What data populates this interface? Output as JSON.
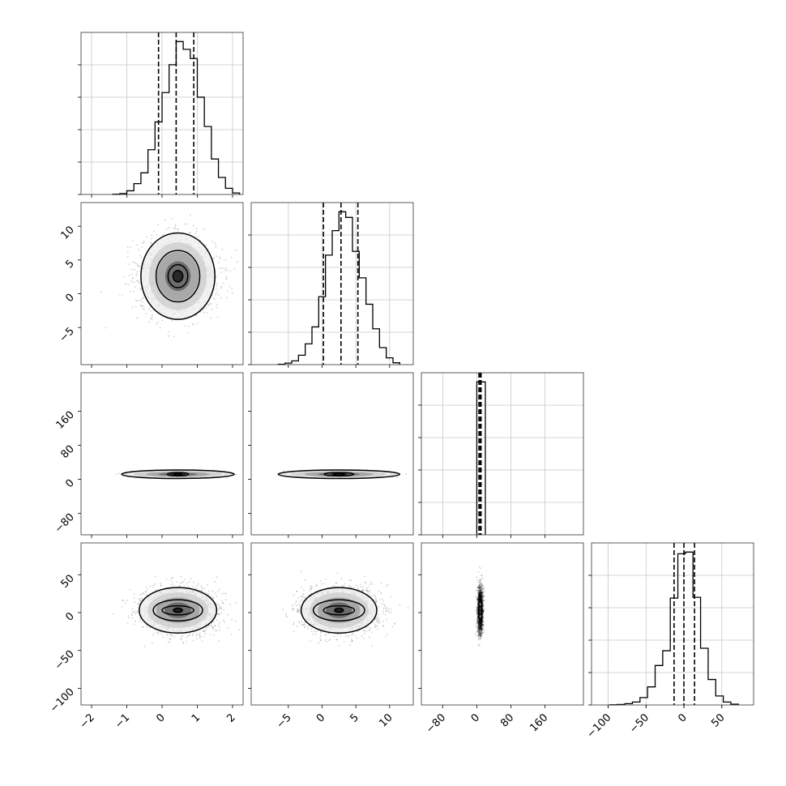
{
  "chart_data": {
    "type": "corner",
    "n_params": 4,
    "params": [
      {
        "range": [
          -2.3,
          2.3
        ],
        "ticks": [
          -2,
          -1,
          0,
          1,
          2
        ],
        "tick_labels": [
          "−2",
          "−1",
          "0",
          "1",
          "2"
        ],
        "median": 0.4,
        "q_low": -0.1,
        "q_high": 0.9,
        "sigma": 0.5
      },
      {
        "range": [
          -10.5,
          13.5
        ],
        "ticks": [
          -5,
          0,
          5,
          10
        ],
        "tick_labels": [
          "−5",
          "0",
          "5",
          "10"
        ],
        "median": 2.8,
        "q_low": 0.2,
        "q_high": 5.3,
        "sigma": 2.6
      },
      {
        "range": [
          -130,
          250
        ],
        "ticks": [
          -80,
          0,
          80,
          160
        ],
        "tick_labels": [
          "−80",
          "0",
          "80",
          "160"
        ],
        "median": 8,
        "q_low": 5,
        "q_high": 10,
        "sigma": 3
      },
      {
        "range": [
          -122,
          92
        ],
        "ticks": [
          -100,
          -50,
          0,
          50
        ],
        "tick_labels": [
          "−100",
          "−50",
          "0",
          "50"
        ],
        "median": 0,
        "q_low": -13,
        "q_high": 14,
        "sigma": 14
      }
    ],
    "histograms": [
      {
        "param": 0,
        "bin_edges": [
          -1.4,
          -1.2,
          -1.0,
          -0.8,
          -0.6,
          -0.4,
          -0.2,
          0.0,
          0.2,
          0.4,
          0.6,
          0.8,
          1.0,
          1.2,
          1.4,
          1.6,
          1.8,
          2.0,
          2.2
        ],
        "counts": [
          1,
          3,
          12,
          35,
          70,
          145,
          235,
          330,
          420,
          495,
          470,
          440,
          315,
          220,
          115,
          55,
          20,
          5
        ]
      },
      {
        "param": 1,
        "bin_edges": [
          -6.5,
          -5.5,
          -4.5,
          -3.5,
          -2.5,
          -1.5,
          -0.5,
          0.5,
          1.5,
          2.5,
          3.5,
          4.5,
          5.5,
          6.5,
          7.5,
          8.5,
          9.5,
          10.5,
          11.5
        ],
        "counts": [
          1,
          4,
          10,
          25,
          55,
          100,
          180,
          290,
          355,
          405,
          390,
          300,
          230,
          160,
          95,
          45,
          18,
          5
        ]
      },
      {
        "param": 2,
        "bin_edges": [
          0,
          20
        ],
        "counts": [
          1000
        ]
      },
      {
        "param": 3,
        "bin_edges": [
          -98,
          -88,
          -78,
          -68,
          -58,
          -48,
          -38,
          -28,
          -18,
          -8,
          2,
          12,
          22,
          32,
          42,
          52,
          62,
          72
        ],
        "counts": [
          1,
          3,
          8,
          18,
          45,
          110,
          240,
          330,
          650,
          920,
          930,
          655,
          345,
          155,
          55,
          18,
          5
        ]
      }
    ],
    "scatter_panels": [
      {
        "x_param": 0,
        "y_param": 1,
        "center": [
          0.45,
          2.6
        ],
        "contour_scale": [
          [
            0.14,
            0.85
          ],
          [
            0.28,
            1.7
          ],
          [
            0.62,
            3.8
          ],
          [
            1.05,
            6.4
          ]
        ]
      },
      {
        "x_param": 0,
        "y_param": 2,
        "center": [
          0.45,
          12
        ],
        "contour_scale": [
          [
            0.1,
            2
          ],
          [
            0.3,
            4
          ],
          [
            1.6,
            10
          ]
        ]
      },
      {
        "x_param": 1,
        "y_param": 2,
        "center": [
          2.5,
          12
        ],
        "contour_scale": [
          [
            0.8,
            2
          ],
          [
            2.2,
            4
          ],
          [
            9,
            10
          ]
        ]
      },
      {
        "x_param": 0,
        "y_param": 3,
        "center": [
          0.45,
          3
        ],
        "contour_scale": [
          [
            0.12,
            2
          ],
          [
            0.45,
            6
          ],
          [
            0.7,
            14
          ],
          [
            1.1,
            30
          ]
        ]
      },
      {
        "x_param": 1,
        "y_param": 3,
        "center": [
          2.5,
          3
        ],
        "contour_scale": [
          [
            0.6,
            2
          ],
          [
            2.3,
            6
          ],
          [
            3.8,
            14
          ],
          [
            5.6,
            30
          ]
        ]
      },
      {
        "x_param": 2,
        "y_param": 3,
        "center": [
          8,
          3
        ],
        "contour_scale": [
          [
            1.5,
            6
          ],
          [
            3.5,
            12
          ]
        ]
      }
    ],
    "grid": true,
    "title": "",
    "legend": ""
  }
}
